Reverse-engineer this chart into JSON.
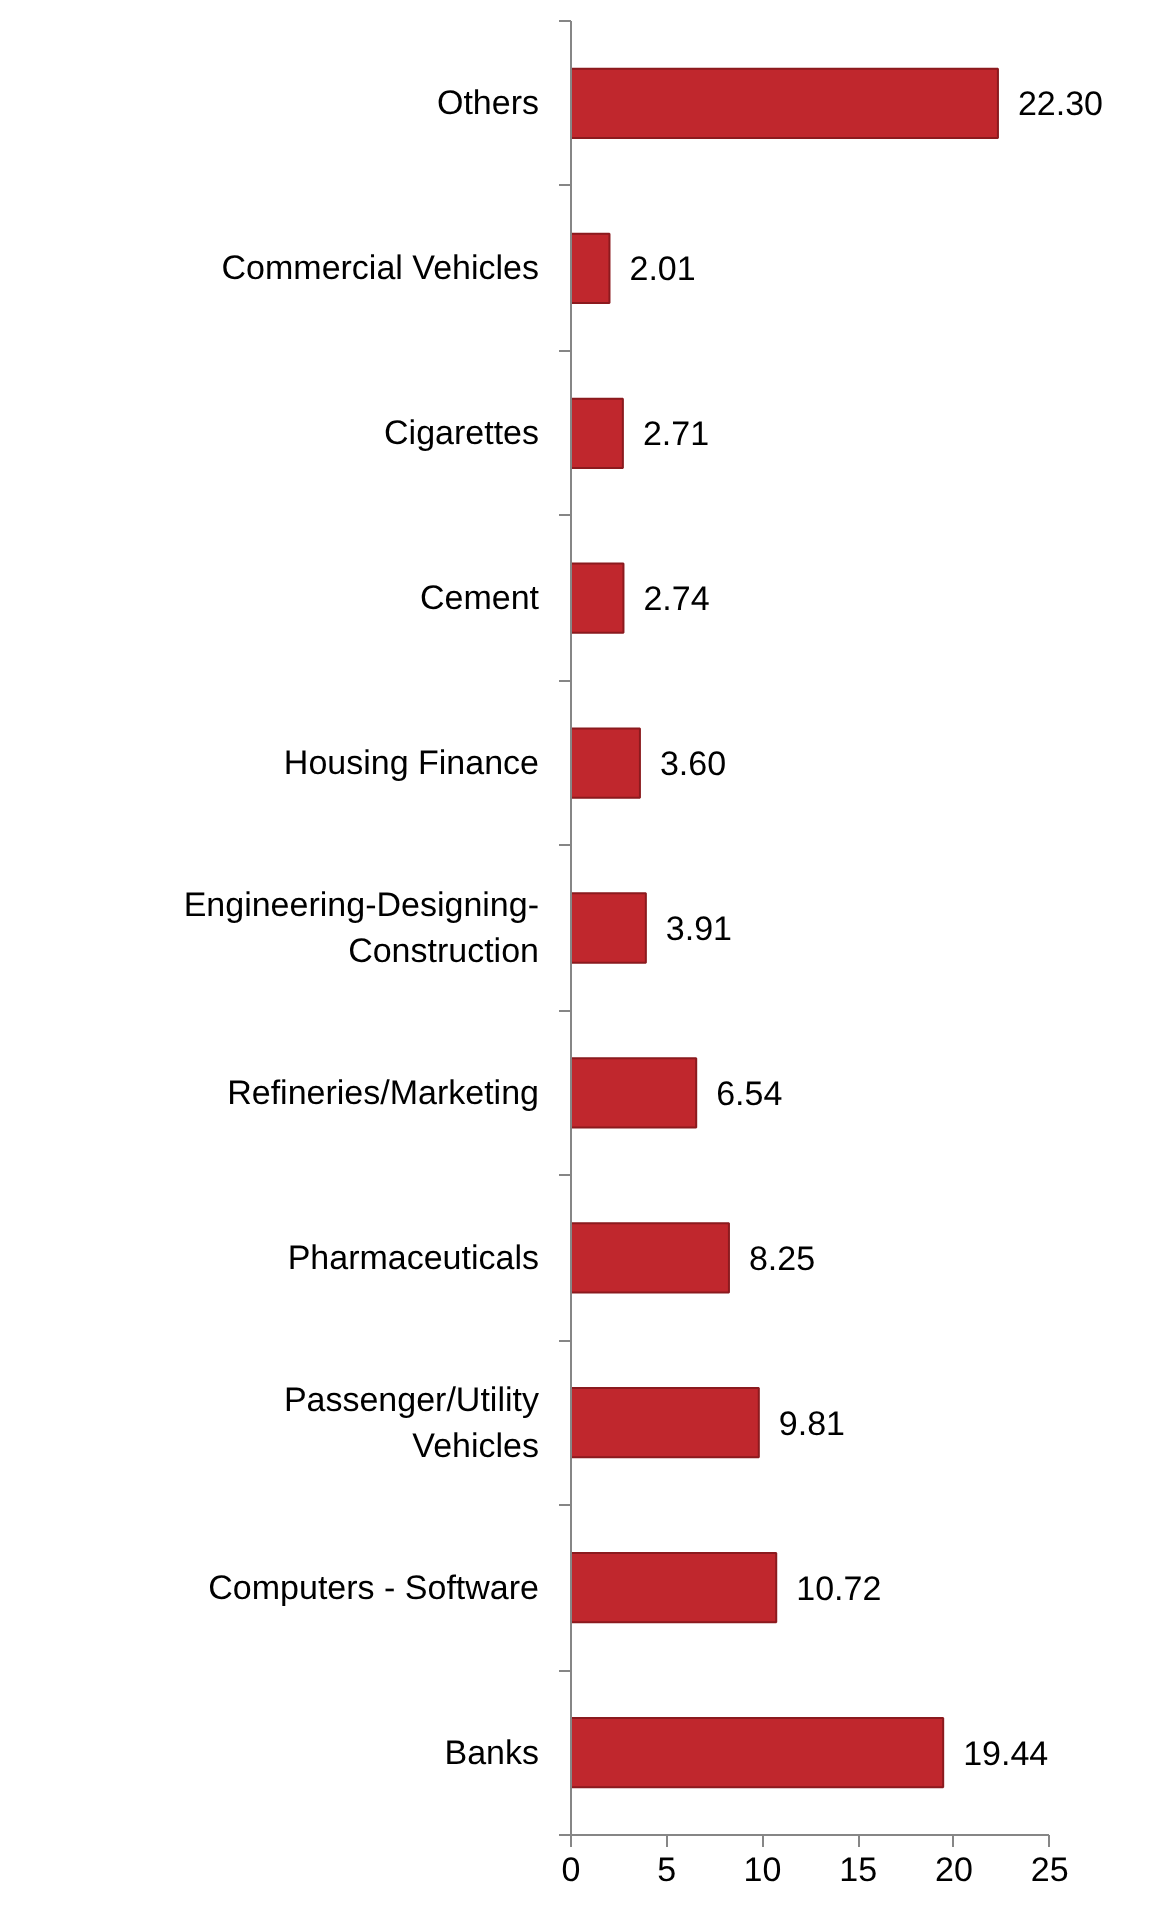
{
  "chart_data": {
    "type": "bar",
    "orientation": "horizontal",
    "categories": [
      "Others",
      "Commercial Vehicles",
      "Cigarettes",
      "Cement",
      "Housing Finance",
      "Engineering-Designing-\nConstruction",
      "Refineries/Marketing",
      "Pharmaceuticals",
      "Passenger/Utility\nVehicles",
      "Computers - Software",
      "Banks"
    ],
    "values": [
      22.3,
      2.01,
      2.71,
      2.74,
      3.6,
      3.91,
      6.54,
      8.25,
      9.81,
      10.72,
      19.44
    ],
    "value_labels": [
      "22.30",
      "2.01",
      "2.71",
      "2.74",
      "3.60",
      "3.91",
      "6.54",
      "8.25",
      "9.81",
      "10.72",
      "19.44"
    ],
    "color": "#c0272d",
    "xlim": [
      0,
      25
    ],
    "xticks": [
      0,
      5,
      10,
      15,
      20,
      25
    ]
  }
}
